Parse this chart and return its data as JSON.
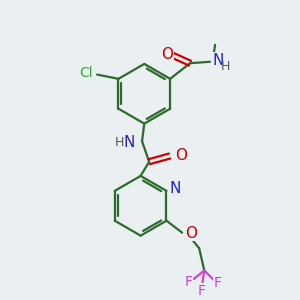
{
  "background_color": "#eaeff2",
  "bond_color": "#2d6b2d",
  "nitrogen_color": "#2222cc",
  "oxygen_color": "#cc0000",
  "chlorine_color": "#33aa33",
  "fluorine_color": "#cc44cc",
  "text_color": "#000000",
  "line_width": 1.6,
  "font_size": 10,
  "xlim": [
    0,
    10
  ],
  "ylim": [
    0,
    10
  ]
}
